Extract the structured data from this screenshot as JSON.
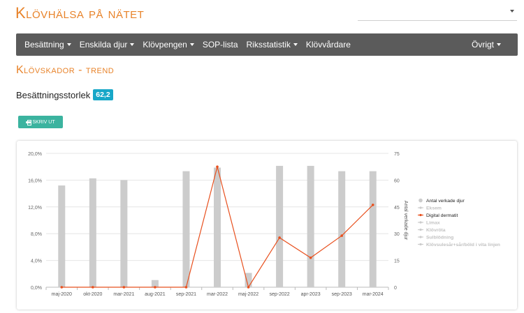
{
  "app": {
    "title": "Klövhälsa på nätet"
  },
  "top_select": {
    "value": ""
  },
  "nav": {
    "items": [
      {
        "label": "Besättning",
        "dropdown": true
      },
      {
        "label": "Enskilda djur",
        "dropdown": true
      },
      {
        "label": "Klövpengen",
        "dropdown": true
      },
      {
        "label": "SOP-lista",
        "dropdown": false
      },
      {
        "label": "Riksstatistik",
        "dropdown": true
      },
      {
        "label": "Klövvårdare",
        "dropdown": false
      }
    ],
    "right_item": {
      "label": "Övrigt",
      "dropdown": true
    }
  },
  "page": {
    "title": "Klövskador - trend",
    "herd_size_label": "Besättningsstorlek",
    "herd_size_value": "62,2",
    "print_label": "SKRIV UT"
  },
  "colors": {
    "accent": "#e8832a",
    "nav_bg": "#5b5b5b",
    "badge": "#17a7c8",
    "button": "#3bb39f",
    "bar": "#cccccc",
    "line": "#e8501e"
  },
  "chart_data": {
    "type": "bar",
    "categories": [
      "maj-2020",
      "okt-2020",
      "mar-2021",
      "aug-2021",
      "sep-2021",
      "mar-2022",
      "maj-2022",
      "sep-2022",
      "apr-2023",
      "sep-2023",
      "mar-2024"
    ],
    "series": [
      {
        "name": "Antal verkade djur",
        "type": "bar",
        "axis": "right",
        "values": [
          57,
          61,
          60,
          4,
          65,
          67,
          8,
          68,
          68,
          65,
          65
        ]
      },
      {
        "name": "Digital dermatit",
        "type": "line",
        "axis": "left",
        "values": [
          0,
          0,
          0,
          0,
          0,
          18.0,
          0,
          7.4,
          4.4,
          7.7,
          12.3
        ]
      }
    ],
    "legend": {
      "placement": "right",
      "items": [
        {
          "name": "Antal verkade djur",
          "active": true,
          "color": "#cccccc",
          "kind": "dot"
        },
        {
          "name": "Eksem",
          "active": false,
          "color": "#cccccc",
          "kind": "line"
        },
        {
          "name": "Digital dermatit",
          "active": true,
          "color": "#e8501e",
          "kind": "line"
        },
        {
          "name": "Limax",
          "active": false,
          "color": "#cccccc",
          "kind": "line"
        },
        {
          "name": "Klövröta",
          "active": false,
          "color": "#cccccc",
          "kind": "line"
        },
        {
          "name": "Sulblödning",
          "active": false,
          "color": "#cccccc",
          "kind": "line"
        },
        {
          "name": "Klövsulesår+sår/böld i vita linjen",
          "active": false,
          "color": "#cccccc",
          "kind": "line"
        }
      ]
    },
    "y_left": {
      "ylim": [
        0,
        20
      ],
      "ticks": [
        "0,0%",
        "4,0%",
        "8,0%",
        "12,0%",
        "16,0%",
        "20,0%"
      ],
      "tick_values": [
        0,
        4,
        8,
        12,
        16,
        20
      ]
    },
    "y_right": {
      "label": "Antal verkade djur",
      "ylim": [
        0,
        75
      ],
      "ticks": [
        "0",
        "15",
        "30",
        "45",
        "60",
        "75"
      ],
      "tick_values": [
        0,
        15,
        30,
        45,
        60,
        75
      ]
    },
    "grid": "horizontal"
  }
}
